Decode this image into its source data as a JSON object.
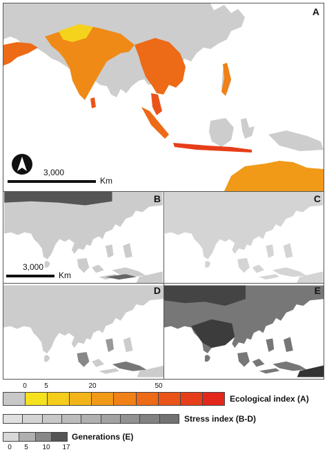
{
  "panels": {
    "a": {
      "label": "A"
    },
    "b": {
      "label": "B"
    },
    "c": {
      "label": "C"
    },
    "d": {
      "label": "D"
    },
    "e": {
      "label": "E"
    }
  },
  "scale_bar_a": {
    "value": "3,000",
    "unit": "Km"
  },
  "scale_bar_b": {
    "value": "3,000",
    "unit": "Km"
  },
  "north_arrow_icon": "north-arrow-icon",
  "legend": {
    "ecological": {
      "label": "Ecological index (A)",
      "ticks": [
        "0",
        "5",
        "20",
        "50"
      ],
      "colors": [
        "#c8c8c8",
        "#f5e11d",
        "#f4cc1a",
        "#f2b419",
        "#f09a18",
        "#ef8117",
        "#ed6a17",
        "#ea5418",
        "#e63e19",
        "#e3281b"
      ]
    },
    "stress": {
      "label": "Stress index (B-D)",
      "colors": [
        "#e0e0e0",
        "#d4d4d4",
        "#c8c8c8",
        "#bcbcbc",
        "#b0b0b0",
        "#a2a2a2",
        "#929292",
        "#828282",
        "#727272"
      ]
    },
    "generations": {
      "label": "Generations (E)",
      "ticks": [
        "0",
        "5",
        "10",
        "17"
      ],
      "colors": [
        "#d8d8d8",
        "#b0b0b0",
        "#888888",
        "#555555"
      ]
    }
  }
}
